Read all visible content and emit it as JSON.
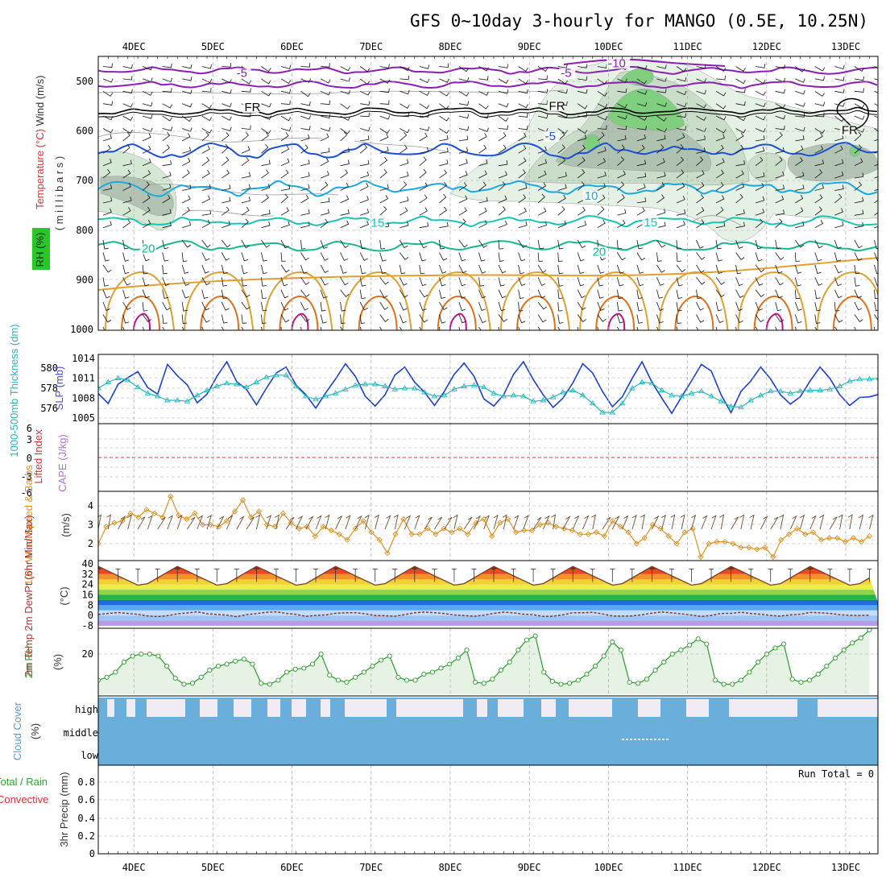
{
  "title": "GFS 0~10day 3-hourly for MANGO (0.5E, 10.25N)",
  "run_total": "Run Total = 0",
  "colors": {
    "purple": "#8a1fb0",
    "blue": "#1a4fd6",
    "cyan": "#1aa8e0",
    "teal": "#19c4b4",
    "green": "#17b890",
    "orange": "#e0a030",
    "deeporange": "#e07018",
    "magenta": "#c01080",
    "thickness": "#22b8c0",
    "slp": "#1a3fd0",
    "wind10": "#e09020",
    "rh2m": "#2a9a2a",
    "cloud": "#6aaedc",
    "grid": "#aaaaaa"
  },
  "chart_data": [
    {
      "type": "contour",
      "panel": "upper-air",
      "ylabel_parts": [
        "RH (%)",
        "Temperature (°C)",
        "Wind (m/s)"
      ],
      "ylabel_units": "( m i l l i b a r s )",
      "x_ticks": [
        "4DEC",
        "5DEC",
        "6DEC",
        "7DEC",
        "8DEC",
        "9DEC",
        "10DEC",
        "11DEC",
        "12DEC",
        "13DEC"
      ],
      "y_ticks": [
        500,
        600,
        700,
        800,
        900,
        1000
      ],
      "ylim": [
        1000,
        450
      ],
      "contour_labels": [
        {
          "text": "-10",
          "day": 10.1,
          "p": 468,
          "color": "purple"
        },
        {
          "text": "-5",
          "day": 5.4,
          "p": 488,
          "color": "purple"
        },
        {
          "text": "-5",
          "day": 9.5,
          "p": 488,
          "color": "purple"
        },
        {
          "text": "FR",
          "day": 5.5,
          "p": 557,
          "color": "black"
        },
        {
          "text": "FR",
          "day": 9.35,
          "p": 554,
          "color": "black"
        },
        {
          "text": "FR",
          "day": 13.05,
          "p": 603,
          "color": "black"
        },
        {
          "text": "-5",
          "day": 9.3,
          "p": 615,
          "color": "blue"
        },
        {
          "text": "10",
          "day": 9.8,
          "p": 735,
          "color": "cyan"
        },
        {
          "text": "15",
          "day": 7.1,
          "p": 790,
          "color": "teal"
        },
        {
          "text": "15",
          "day": 10.55,
          "p": 789,
          "color": "teal"
        },
        {
          "text": "20",
          "day": 4.2,
          "p": 842,
          "color": "green"
        },
        {
          "text": "20",
          "day": 9.9,
          "p": 848,
          "color": "green"
        }
      ]
    },
    {
      "type": "line",
      "panel": "thickness-slp",
      "ylabel_left": "1000-500mb Thickness (dm)",
      "ylabel_right": "SLP (mb)",
      "y_ticks_left": [
        580,
        578,
        576
      ],
      "y_ticks_right": [
        1014,
        1011,
        1008,
        1005
      ],
      "series": [
        {
          "name": "SLP (mb)",
          "axis": "right",
          "values": [
            1008.7,
            1007.2,
            1010.1,
            1011.1,
            1012.0,
            1009.6,
            1008.6,
            1013.1,
            1011.4,
            1010.0,
            1007.3,
            1008.6,
            1011.3,
            1013.5,
            1010.5,
            1009.3,
            1007.0,
            1009.5,
            1011.8,
            1012.7,
            1010.0,
            1008.5,
            1006.5,
            1008.8,
            1010.9,
            1013.2,
            1011.3,
            1008.3,
            1006.8,
            1008.5,
            1011.5,
            1012.7,
            1010.4,
            1008.9,
            1006.9,
            1009.0,
            1011.6,
            1013.3,
            1011.3,
            1007.9,
            1006.8,
            1008.5,
            1011.6,
            1013.5,
            1010.8,
            1008.5,
            1006.6,
            1008.0,
            1010.3,
            1013.2,
            1011.8,
            1009.0,
            1006.7,
            1008.2,
            1011.0,
            1013.5,
            1010.4,
            1008.0,
            1005.7,
            1008.2,
            1010.6,
            1013.1,
            1012.1,
            1008.5,
            1005.8,
            1009.0,
            1010.6,
            1012.7,
            1010.9,
            1008.5,
            1007.1,
            1008.2,
            1010.6,
            1012.7,
            1011.0,
            1008.5,
            1006.9,
            1008.1,
            1008.2,
            1008.6,
            1010.5,
            1008.7,
            1007.1,
            1008.3,
            1008.9,
            1010.3,
            1009.1,
            1006.3,
            1004.6,
            1006.6,
            1008.1,
            1008.4,
            1008.9,
            1008.0
          ]
        },
        {
          "name": "1000-500mb Thickness (dm)",
          "axis": "left",
          "values": [
            578.0,
            578.6,
            579.0,
            578.8,
            578.1,
            577.5,
            577.2,
            576.8,
            576.8,
            576.7,
            577.3,
            577.8,
            578.2,
            578.5,
            578.4,
            578.1,
            578.6,
            579.1,
            579.3,
            579.3,
            578.2,
            577.2,
            576.9,
            577.2,
            577.5,
            577.9,
            578.3,
            578.4,
            578.4,
            578.2,
            577.9,
            578.0,
            578.0,
            577.6,
            577.2,
            577.3,
            577.9,
            578.2,
            578.3,
            578.1,
            577.5,
            577.2,
            577.3,
            577.2,
            576.7,
            576.8,
            577.1,
            577.6,
            577.8,
            577.3,
            576.5,
            575.6,
            575.6,
            576.5,
            578.0,
            578.6,
            578.5,
            577.8,
            577.3,
            577.2,
            577.5,
            577.7,
            577.2,
            576.7,
            576.2,
            576.1,
            576.8,
            577.3,
            577.7,
            577.7,
            577.5,
            577.7,
            577.8,
            577.8,
            577.9,
            578.2,
            578.7,
            578.9,
            578.9,
            579.0,
            578.5,
            578.0,
            578.0,
            578.3,
            578.4,
            578.2,
            578.1,
            577.8,
            578.5,
            580.0,
            580.5,
            580.2,
            579.5,
            579.0
          ]
        }
      ]
    },
    {
      "type": "line",
      "panel": "stability",
      "ylabel_left": "Lifted Index",
      "ylabel_right": "CAPE (J/kg)",
      "y_ticks": [
        "6",
        "3",
        "0",
        "-3",
        "-6"
      ],
      "zero_line": 0
    },
    {
      "type": "line",
      "panel": "wind10m",
      "ylabel_left": "10m Wind Speed & Barbs",
      "ylabel_units": "(m/s)",
      "y_ticks": [
        4,
        3,
        2
      ],
      "series": [
        {
          "name": "10m Wind Speed",
          "values": [
            2.0,
            2.9,
            3.1,
            3.2,
            3.6,
            3.4,
            3.8,
            3.6,
            3.4,
            4.5,
            3.5,
            3.3,
            3.6,
            3.0,
            3.0,
            2.9,
            3.2,
            3.7,
            4.3,
            3.4,
            3.7,
            3.0,
            2.9,
            3.6,
            3.1,
            2.8,
            2.9,
            2.4,
            2.9,
            2.7,
            2.5,
            2.2,
            2.8,
            3.2,
            2.6,
            2.2,
            1.5,
            2.5,
            3.3,
            2.5,
            2.5,
            2.8,
            2.5,
            2.8,
            2.6,
            2.8,
            2.5,
            3.1,
            3.3,
            2.4,
            3.1,
            3.3,
            2.6,
            2.7,
            2.7,
            3.0,
            3.1,
            2.9,
            2.8,
            2.7,
            2.5,
            2.5,
            2.6,
            2.4,
            3.2,
            2.9,
            2.6,
            2.0,
            2.3,
            3.0,
            2.8,
            2.4,
            2.0,
            2.6,
            2.8,
            1.3,
            2.0,
            2.1,
            2.1,
            2.0,
            1.8,
            1.8,
            1.7,
            1.8,
            1.3,
            2.2,
            2.5,
            2.8,
            2.5,
            2.6,
            2.2,
            2.3,
            2.3,
            2.1,
            2.3,
            2.1,
            2.4
          ]
        }
      ]
    },
    {
      "type": "area",
      "panel": "temp2m",
      "ylabel_left": "2m Temp 2m DewPt (6hr Min/Max)",
      "ylabel_units": "(°C)",
      "y_ticks": [
        40,
        32,
        24,
        16,
        8,
        0,
        -8
      ],
      "series": [
        {
          "name": "2m Temp",
          "pattern_min": 22,
          "pattern_max": 38
        },
        {
          "name": "2m DewPt",
          "pattern_min": -2,
          "pattern_max": 3
        }
      ],
      "temperature_bands": [
        {
          "from": -8,
          "to": -4,
          "color": "#b89ce8"
        },
        {
          "from": -4,
          "to": 0,
          "color": "#9ec4f5"
        },
        {
          "from": 0,
          "to": 4,
          "color": "#c4dcff"
        },
        {
          "from": 4,
          "to": 8,
          "color": "#5aa8f0"
        },
        {
          "from": 8,
          "to": 12,
          "color": "#1e6be0"
        },
        {
          "from": 12,
          "to": 16,
          "color": "#23b44a"
        },
        {
          "from": 16,
          "to": 20,
          "color": "#8fd24c"
        },
        {
          "from": 20,
          "to": 24,
          "color": "#e8ef46"
        },
        {
          "from": 24,
          "to": 28,
          "color": "#f4cf36"
        },
        {
          "from": 28,
          "to": 32,
          "color": "#f49426"
        },
        {
          "from": 32,
          "to": 36,
          "color": "#ea4b1e"
        },
        {
          "from": 36,
          "to": 40,
          "color": "#c81010"
        },
        {
          "from": 40,
          "to": 44,
          "color": "#7a0a0a"
        }
      ]
    },
    {
      "type": "area",
      "panel": "rh2m",
      "ylabel_left": "2m RH",
      "ylabel_units": "(%)",
      "y_ticks": [
        20
      ],
      "series": [
        {
          "name": "2m RH",
          "values": [
            7.0,
            8.5,
            11.0,
            16.0,
            19.0,
            20.0,
            20.0,
            19.0,
            14.0,
            8.0,
            5.0,
            5.5,
            8.5,
            12.0,
            14.0,
            15.0,
            16.5,
            17.5,
            15.0,
            5.5,
            5.0,
            7.0,
            11.0,
            12.5,
            13.0,
            15.0,
            20.0,
            9.5,
            7.0,
            6.0,
            8.5,
            11.0,
            14.0,
            17.0,
            19.0,
            8.5,
            7.0,
            7.0,
            10.0,
            11.0,
            13.0,
            15.0,
            18.0,
            22.0,
            6.0,
            5.5,
            7.5,
            12.0,
            16.0,
            22.0,
            27.0,
            29.0,
            11.0,
            6.5,
            5.0,
            5.5,
            7.0,
            10.0,
            14.0,
            19.0,
            26.0,
            22.0,
            6.0,
            5.5,
            7.5,
            12.0,
            16.0,
            20.0,
            22.0,
            24.5,
            27.5,
            25.0,
            7.0,
            5.0,
            5.0,
            7.0,
            11.0,
            16.0,
            20.0,
            23.0,
            25.0,
            7.5,
            6.0,
            7.0,
            10.0,
            14.0,
            18.0,
            22.0,
            25.5,
            28.0,
            32.0
          ]
        }
      ]
    },
    {
      "type": "heatmap",
      "panel": "cloud-cover",
      "ylabel_left": "Cloud Cover",
      "ylabel_units": "(%)",
      "levels": [
        "high",
        "middle",
        "low"
      ]
    },
    {
      "type": "bar",
      "panel": "precip",
      "ylabel_left_parts": [
        "Total / Rain",
        "Convective"
      ],
      "ylabel_units": "3hr Precip (mm)",
      "y_ticks": [
        "0.8",
        "0.6",
        "0.4",
        "0.2",
        "0"
      ],
      "x_ticks": [
        "4DEC",
        "5DEC",
        "6DEC",
        "7DEC",
        "8DEC",
        "9DEC",
        "10DEC",
        "11DEC",
        "12DEC",
        "13DEC"
      ],
      "values": []
    }
  ]
}
